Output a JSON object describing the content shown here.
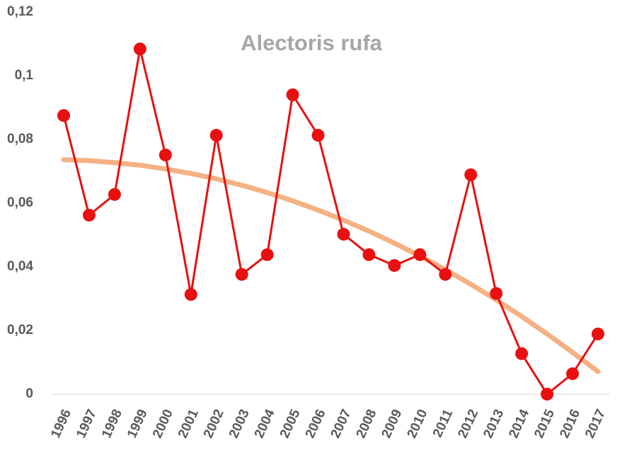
{
  "chart_data": {
    "type": "line",
    "title": "Alectoris rufa",
    "categories": [
      "1996",
      "1997",
      "1998",
      "1999",
      "2000",
      "2001",
      "2002",
      "2003",
      "2004",
      "2005",
      "2006",
      "2007",
      "2008",
      "2009",
      "2010",
      "2011",
      "2012",
      "2013",
      "2014",
      "2015",
      "2016",
      "2017"
    ],
    "series": [
      {
        "color": "#e81010",
        "markers": true,
        "values": [
          0.0875,
          0.0562,
          0.0627,
          0.1084,
          0.0751,
          0.0313,
          0.0813,
          0.0376,
          0.0438,
          0.094,
          0.0813,
          0.0502,
          0.0438,
          0.0404,
          0.0438,
          0.0376,
          0.0689,
          0.0316,
          0.0127,
          0,
          0.0064,
          0.0189
        ]
      },
      {
        "color": "#f4b183",
        "markers": false,
        "values": [
          0.0736,
          0.0733,
          0.0727,
          0.0719,
          0.0707,
          0.0693,
          0.0676,
          0.0656,
          0.0633,
          0.0607,
          0.0578,
          0.0546,
          0.0512,
          0.0474,
          0.0434,
          0.0391,
          0.0345,
          0.0296,
          0.0244,
          0.0189,
          0.0131,
          0.0071
        ]
      }
    ],
    "ylim": [
      0,
      0.12
    ],
    "yticks": [
      0,
      {
        "value": 0.02,
        "label": "0,02"
      },
      {
        "value": 0.04,
        "label": "0,04"
      },
      {
        "value": 0.06,
        "label": "0,06"
      },
      {
        "value": 0.08,
        "label": "0,08"
      },
      {
        "value": 0.1,
        "label": "0,1"
      },
      {
        "value": 0.12,
        "label": "0,12"
      }
    ],
    "grid": false
  }
}
